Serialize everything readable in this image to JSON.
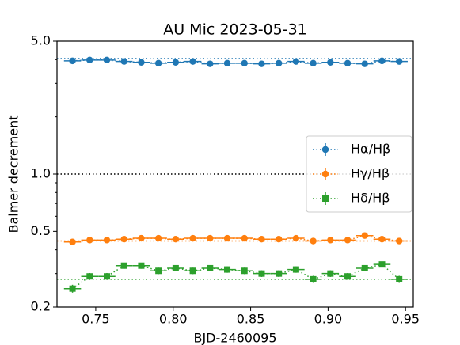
{
  "chart_data": {
    "type": "errorbar",
    "title": "AU Mic 2023-05-31",
    "x_label": "BJD-2460095",
    "y_label": "Balmer decrement",
    "log_y": true,
    "legend": "center right",
    "xlim": [
      0.725,
      0.955
    ],
    "xticks": [
      {
        "value": 0.75,
        "label": "0.75"
      },
      {
        "value": 0.8,
        "label": "0.80"
      },
      {
        "value": 0.85,
        "label": "0.85"
      },
      {
        "value": 0.9,
        "label": "0.90"
      },
      {
        "value": 0.95,
        "label": "0.95"
      }
    ],
    "ylim": [
      0.2,
      5
    ],
    "yticks": [
      0.2,
      0.5,
      {
        "value": 1,
        "label": "1.0"
      },
      {
        "value": 5,
        "label": "5.0"
      }
    ],
    "yminorticks": [
      0.3,
      0.4,
      0.6,
      0.7,
      0.8,
      0.9,
      2,
      3,
      4
    ],
    "hlines": [
      {
        "value": 1,
        "color": "#000000"
      }
    ],
    "xerr": 0.0055,
    "x": [
      0.735,
      0.7461,
      0.7572,
      0.7683,
      0.7794,
      0.7905,
      0.8016,
      0.8127,
      0.8238,
      0.8349,
      0.846,
      0.8571,
      0.8682,
      0.8793,
      0.8904,
      0.9015,
      0.9126,
      0.9237,
      0.9348,
      0.9459
    ],
    "series": [
      {
        "name": "Hα/Hβ",
        "color": "#1f77b4",
        "marker": "circle",
        "reference": 4.05,
        "values": [
          3.94,
          3.98,
          3.98,
          3.91,
          3.87,
          3.83,
          3.87,
          3.91,
          3.8,
          3.83,
          3.83,
          3.8,
          3.83,
          3.91,
          3.83,
          3.87,
          3.83,
          3.8,
          3.94,
          3.91
        ],
        "yerr": [
          0.06,
          0.06,
          0.06,
          0.06,
          0.06,
          0.06,
          0.06,
          0.06,
          0.06,
          0.06,
          0.06,
          0.06,
          0.06,
          0.06,
          0.06,
          0.06,
          0.06,
          0.06,
          0.06,
          0.06
        ]
      },
      {
        "name": "Hγ/Hβ",
        "color": "#ff7f0e",
        "marker": "circle",
        "reference": 0.445,
        "values": [
          0.44,
          0.45,
          0.45,
          0.455,
          0.46,
          0.46,
          0.455,
          0.46,
          0.46,
          0.46,
          0.46,
          0.455,
          0.455,
          0.46,
          0.445,
          0.45,
          0.45,
          0.475,
          0.455,
          0.445
        ],
        "yerr": [
          0.007,
          0.007,
          0.007,
          0.007,
          0.007,
          0.007,
          0.007,
          0.007,
          0.007,
          0.007,
          0.007,
          0.007,
          0.007,
          0.007,
          0.007,
          0.007,
          0.007,
          0.007,
          0.007,
          0.007
        ]
      },
      {
        "name": "Hδ/Hβ",
        "color": "#2ca02c",
        "marker": "square",
        "reference": 0.28,
        "values": [
          0.25,
          0.29,
          0.29,
          0.33,
          0.33,
          0.31,
          0.32,
          0.31,
          0.32,
          0.315,
          0.31,
          0.3,
          0.3,
          0.315,
          0.28,
          0.3,
          0.29,
          0.32,
          0.335,
          0.28
        ],
        "yerr": [
          0.012,
          0.012,
          0.012,
          0.012,
          0.012,
          0.012,
          0.012,
          0.012,
          0.012,
          0.012,
          0.012,
          0.012,
          0.012,
          0.012,
          0.012,
          0.012,
          0.012,
          0.012,
          0.012,
          0.012
        ]
      }
    ]
  }
}
